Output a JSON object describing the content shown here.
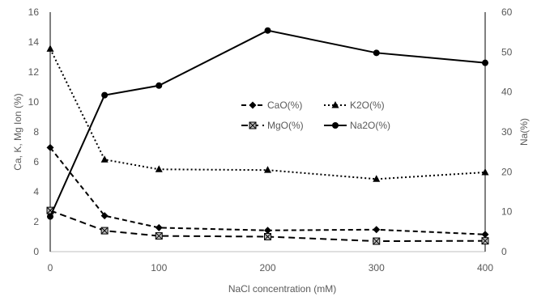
{
  "chart_data": {
    "type": "line",
    "x": [
      0,
      50,
      100,
      200,
      300,
      400
    ],
    "xlabel": "NaCl concentration (mM)",
    "xlim": [
      0,
      400
    ],
    "xticks": [
      "0",
      "100",
      "200",
      "300",
      "400"
    ],
    "ylabel": "Ca, K, Mg Ion (%)",
    "ylim": [
      0,
      16
    ],
    "yticks": [
      "0",
      "2",
      "4",
      "6",
      "8",
      "10",
      "12",
      "14",
      "16"
    ],
    "y2label": "Na(%)",
    "y2lim": [
      0,
      60
    ],
    "y2ticks": [
      "0",
      "10",
      "20",
      "30",
      "40",
      "50",
      "60"
    ],
    "grid": false,
    "legend_position": "middle-right",
    "series": [
      {
        "name": "CaO(%)",
        "axis": "left",
        "values": [
          6.95,
          2.4,
          1.6,
          1.42,
          1.47,
          1.15
        ],
        "marker": "diamond",
        "dash": "dashed",
        "color": "#000000"
      },
      {
        "name": "K2O(%)",
        "axis": "left",
        "values": [
          13.55,
          6.15,
          5.5,
          5.45,
          4.85,
          5.3
        ],
        "marker": "triangle",
        "dash": "dotted",
        "color": "#000000"
      },
      {
        "name": "MgO(%)",
        "axis": "left",
        "values": [
          2.75,
          1.4,
          1.05,
          1.0,
          0.7,
          0.72
        ],
        "marker": "square-x",
        "dash": "longdash",
        "color": "#000000"
      },
      {
        "name": "Na2O(%)",
        "axis": "right",
        "values": [
          8.8,
          39.2,
          41.6,
          55.4,
          49.8,
          47.3
        ],
        "marker": "circle",
        "dash": "solid",
        "color": "#000000"
      }
    ]
  }
}
